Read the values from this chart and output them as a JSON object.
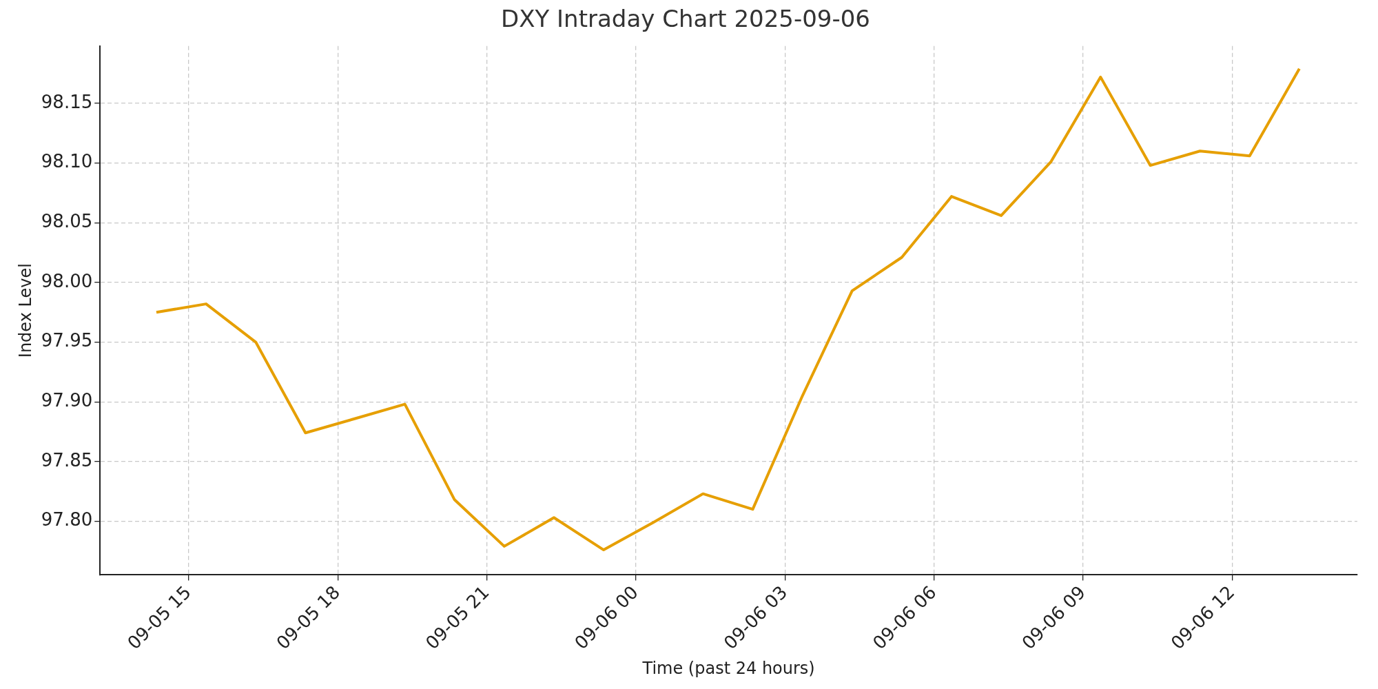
{
  "chart_data": {
    "type": "line",
    "title": "DXY Intraday Chart 2025-09-06",
    "xlabel": "Time (past 24 hours)",
    "ylabel": "Index Level",
    "x": [
      "2025-09-05T14:21",
      "2025-09-05T15:21",
      "2025-09-05T16:21",
      "2025-09-05T17:21",
      "2025-09-05T18:21",
      "2025-09-05T19:21",
      "2025-09-05T20:21",
      "2025-09-05T21:21",
      "2025-09-05T22:21",
      "2025-09-05T23:21",
      "2025-09-06T00:21",
      "2025-09-06T01:21",
      "2025-09-06T02:21",
      "2025-09-06T03:21",
      "2025-09-06T04:21",
      "2025-09-06T05:21",
      "2025-09-06T06:21",
      "2025-09-06T07:21",
      "2025-09-06T08:21",
      "2025-09-06T09:21",
      "2025-09-06T10:21",
      "2025-09-06T11:21",
      "2025-09-06T12:21",
      "2025-09-06T13:21"
    ],
    "series": [
      {
        "color": "#e69f00",
        "values": [
          97.975,
          97.982,
          97.95,
          97.874,
          97.886,
          97.898,
          97.818,
          97.779,
          97.803,
          97.776,
          97.799,
          97.823,
          97.81,
          97.905,
          97.993,
          98.021,
          98.072,
          98.056,
          98.101,
          98.172,
          98.098,
          98.11,
          98.106,
          98.179
        ]
      }
    ],
    "xlim": [
      "2025-09-05T13:13",
      "2025-09-06T14:31"
    ],
    "xticks": [
      {
        "value": "2025-09-05T15:00",
        "label": "09-05 15"
      },
      {
        "value": "2025-09-05T18:00",
        "label": "09-05 18"
      },
      {
        "value": "2025-09-05T21:00",
        "label": "09-05 21"
      },
      {
        "value": "2025-09-06T00:00",
        "label": "09-06 00"
      },
      {
        "value": "2025-09-06T03:00",
        "label": "09-06 03"
      },
      {
        "value": "2025-09-06T06:00",
        "label": "09-06 06"
      },
      {
        "value": "2025-09-06T09:00",
        "label": "09-06 09"
      },
      {
        "value": "2025-09-06T12:00",
        "label": "09-06 12"
      }
    ],
    "ylim": [
      97.755,
      98.198
    ],
    "yticks": [
      {
        "value": 97.8,
        "label": "97.80"
      },
      97.85,
      {
        "value": 97.9,
        "label": "97.90"
      },
      97.95,
      {
        "value": 98,
        "label": "98.00"
      },
      98.05,
      {
        "value": 98.1,
        "label": "98.10"
      },
      98.15
    ],
    "grid": true,
    "legend": false,
    "marker": "none",
    "line_style": "solid"
  }
}
